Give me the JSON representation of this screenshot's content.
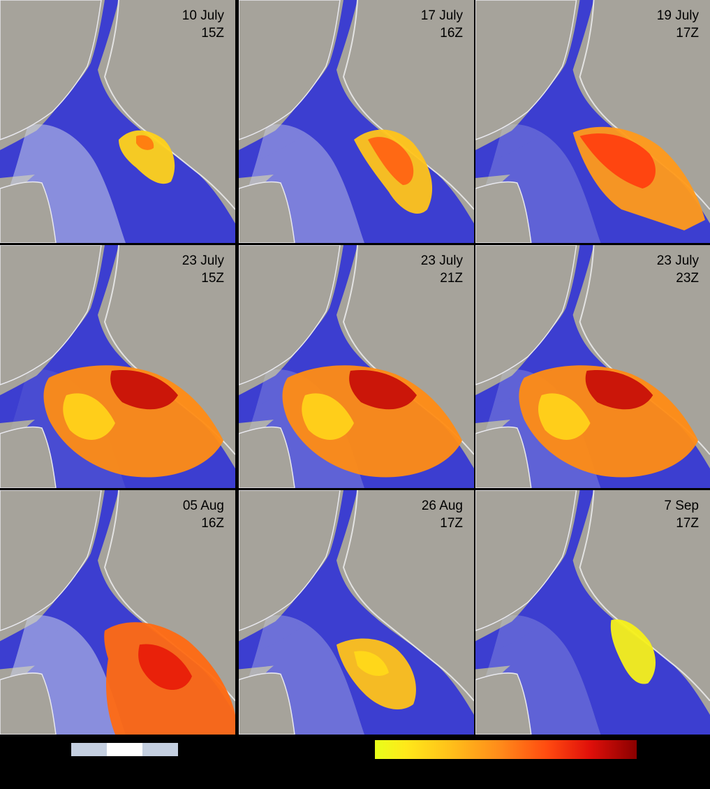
{
  "panels": [
    {
      "date": "10 July",
      "time": "15Z",
      "bloom": "small"
    },
    {
      "date": "17 July",
      "time": "16Z",
      "bloom": "medium"
    },
    {
      "date": "19 July",
      "time": "17Z",
      "bloom": "large"
    },
    {
      "date": "23 July",
      "time": "15Z",
      "bloom": "full"
    },
    {
      "date": "23 July",
      "time": "21Z",
      "bloom": "full"
    },
    {
      "date": "23 July",
      "time": "23Z",
      "bloom": "full"
    },
    {
      "date": "05 Aug",
      "time": "16Z",
      "bloom": "east"
    },
    {
      "date": "26 Aug",
      "time": "17Z",
      "bloom": "yellow"
    },
    {
      "date": "7 Sep",
      "time": "17Z",
      "bloom": "faint"
    }
  ],
  "colors": {
    "land": "#a6a39b",
    "water": "#3c3ed0",
    "cloud": "#c9cfe8",
    "legend_cloud_a": "#c4cfe0",
    "legend_cloud_b": "#ffffff",
    "ramp_start": "#e8ff1a",
    "ramp_end": "#8a0000"
  },
  "legend": {
    "cloud_swatches": [
      "legend_cloud_a",
      "legend_cloud_b",
      "legend_cloud_a"
    ],
    "ramp": "yellow-to-dark-red"
  }
}
